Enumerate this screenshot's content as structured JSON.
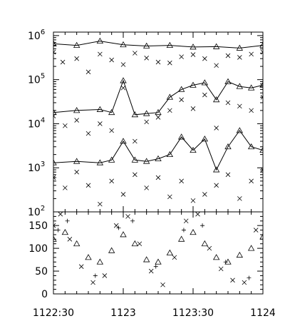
{
  "chart_data": [
    {
      "type": "scatter",
      "panel": "top",
      "yscale": "log",
      "ylim": [
        100,
        1200000
      ],
      "xlim": [
        "1122:30",
        "1124"
      ],
      "xlabel": "",
      "ylabel": "",
      "title": "",
      "y_tick_labels": [
        {
          "value": 100,
          "base": "10",
          "exp": "2"
        },
        {
          "value": 1000,
          "base": "10",
          "exp": "3"
        },
        {
          "value": 10000,
          "base": "10",
          "exp": "4"
        },
        {
          "value": 100000,
          "base": "10",
          "exp": "5"
        },
        {
          "value": 1000000,
          "base": "10",
          "exp": "6"
        }
      ],
      "series": [
        {
          "marker": "triangle-with-line",
          "x": [
            "1122:30",
            "1122:40",
            "1122:50",
            "1123:00",
            "1123:10",
            "1123:20",
            "1123:30",
            "1123:40",
            "1123:50",
            "1124:00"
          ],
          "values": [
            650000,
            600000,
            750000,
            620000,
            580000,
            600000,
            550000,
            560000,
            520000,
            600000
          ]
        },
        {
          "marker": "x",
          "x": [
            "1122:30",
            "1122:34",
            "1122:40",
            "1122:45",
            "1122:50",
            "1122:55",
            "1123:00",
            "1123:05",
            "1123:10",
            "1123:15",
            "1123:20",
            "1123:25",
            "1123:30",
            "1123:35",
            "1123:40",
            "1123:45",
            "1123:50",
            "1123:55",
            "1124:00"
          ],
          "values": [
            420000,
            250000,
            300000,
            150000,
            380000,
            280000,
            220000,
            400000,
            310000,
            250000,
            240000,
            330000,
            370000,
            300000,
            210000,
            350000,
            320000,
            380000,
            420000
          ]
        },
        {
          "marker": "triangle-with-line",
          "x": [
            "1122:30",
            "1122:40",
            "1122:50",
            "1122:55",
            "1123:00",
            "1123:05",
            "1123:10",
            "1123:15",
            "1123:20",
            "1123:25",
            "1123:30",
            "1123:35",
            "1123:40",
            "1123:45",
            "1123:50",
            "1123:55",
            "1124:00"
          ],
          "values": [
            18000,
            20000,
            21000,
            18000,
            95000,
            16000,
            17000,
            18000,
            40000,
            60000,
            75000,
            85000,
            35000,
            90000,
            70000,
            65000,
            75000
          ]
        },
        {
          "marker": "x",
          "x": [
            "1122:30",
            "1122:35",
            "1122:40",
            "1122:45",
            "1122:50",
            "1122:55",
            "1123:00",
            "1123:05",
            "1123:10",
            "1123:15",
            "1123:20",
            "1123:25",
            "1123:30",
            "1123:35",
            "1123:40",
            "1123:45",
            "1123:50",
            "1123:55",
            "1124:00"
          ],
          "values": [
            15000,
            9000,
            12000,
            6000,
            10000,
            7000,
            65000,
            4000,
            11000,
            14000,
            20000,
            35000,
            22000,
            45000,
            8000,
            30000,
            25000,
            20000,
            40000
          ]
        },
        {
          "marker": "triangle-with-line",
          "x": [
            "1122:30",
            "1122:40",
            "1122:50",
            "1122:55",
            "1123:00",
            "1123:05",
            "1123:10",
            "1123:15",
            "1123:20",
            "1123:25",
            "1123:30",
            "1123:35",
            "1123:40",
            "1123:45",
            "1123:50",
            "1123:55",
            "1124:00"
          ],
          "values": [
            1300,
            1400,
            1300,
            1500,
            4000,
            1500,
            1400,
            1600,
            2000,
            5000,
            2500,
            4500,
            900,
            3000,
            7000,
            3000,
            2500
          ]
        },
        {
          "marker": "x",
          "x": [
            "1122:30",
            "1122:35",
            "1122:40",
            "1122:45",
            "1122:50",
            "1122:55",
            "1123:00",
            "1123:05",
            "1123:10",
            "1123:15",
            "1123:20",
            "1123:25",
            "1123:30",
            "1123:35",
            "1123:40",
            "1123:45",
            "1123:50",
            "1123:55",
            "1124:00"
          ],
          "values": [
            600,
            350,
            800,
            400,
            150,
            500,
            250,
            700,
            350,
            600,
            220,
            500,
            180,
            250,
            400,
            700,
            200,
            500,
            900
          ]
        }
      ]
    },
    {
      "type": "scatter",
      "panel": "bottom",
      "ylim": [
        0,
        180
      ],
      "xlim": [
        "1122:30",
        "1124"
      ],
      "xlabel": "",
      "ylabel": "",
      "title": "",
      "y_tick_labels": [
        "0",
        "50",
        "100",
        "150"
      ],
      "y_tick_values": [
        0,
        50,
        100,
        150
      ],
      "x_tick_labels": [
        "1122:30",
        "1123",
        "1123:30",
        "1124"
      ],
      "series": [
        {
          "marker": "triangle",
          "x": [
            "1122:30",
            "1122:35",
            "1122:40",
            "1122:45",
            "1122:50",
            "1122:55",
            "1123:00",
            "1123:05",
            "1123:10",
            "1123:15",
            "1123:20",
            "1123:25",
            "1123:30",
            "1123:35",
            "1123:40",
            "1123:45",
            "1123:50",
            "1123:55",
            "1124:00"
          ],
          "values": [
            120,
            135,
            110,
            80,
            70,
            95,
            130,
            110,
            75,
            70,
            90,
            120,
            135,
            110,
            80,
            70,
            85,
            100,
            125
          ]
        },
        {
          "marker": "x",
          "x": [
            "1122:30",
            "1122:33",
            "1122:37",
            "1122:42",
            "1122:47",
            "1122:52",
            "1122:57",
            "1123:02",
            "1123:07",
            "1123:12",
            "1123:17",
            "1123:22",
            "1123:27",
            "1123:32",
            "1123:37",
            "1123:42",
            "1123:47",
            "1123:52",
            "1123:57"
          ],
          "values": [
            150,
            175,
            120,
            60,
            25,
            40,
            150,
            170,
            110,
            50,
            20,
            80,
            160,
            175,
            100,
            55,
            30,
            25,
            140
          ]
        },
        {
          "marker": "plus",
          "x": [
            "1122:32",
            "1122:36",
            "1122:48",
            "1122:58",
            "1123:04",
            "1123:14",
            "1123:26",
            "1123:34",
            "1123:44",
            "1123:54"
          ],
          "values": [
            140,
            160,
            40,
            145,
            160,
            60,
            140,
            150,
            70,
            35
          ]
        }
      ]
    }
  ]
}
